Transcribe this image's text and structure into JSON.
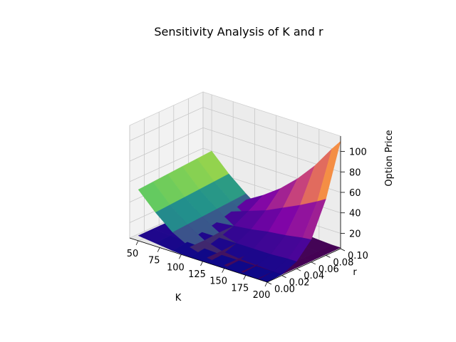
{
  "chart_data": {
    "type": "surface3d",
    "title": "Sensitivity Analysis of K and r",
    "xlabel": "K",
    "ylabel": "r",
    "zlabel": "Option Price",
    "xlim": [
      40,
      200
    ],
    "ylim": [
      0.0,
      0.1
    ],
    "zlim": [
      5,
      115
    ],
    "x_ticks": [
      50,
      75,
      100,
      125,
      150,
      175,
      200
    ],
    "x_tick_labels": [
      "50",
      "75",
      "100",
      "125",
      "150",
      "175",
      "200"
    ],
    "y_ticks": [
      0.0,
      0.02,
      0.04,
      0.06,
      0.08,
      0.1
    ],
    "y_tick_labels": [
      "0.00",
      "0.02",
      "0.04",
      "0.06",
      "0.08",
      "0.10"
    ],
    "z_ticks": [
      20,
      40,
      60,
      80,
      100
    ],
    "z_tick_labels": [
      "20",
      "40",
      "60",
      "80",
      "100"
    ],
    "grid": true,
    "series": [
      {
        "colormap": "viridis",
        "K": [
          50,
          70,
          90,
          110,
          130,
          150,
          170,
          190,
          200
        ],
        "r": [
          0.0,
          0.02,
          0.04,
          0.06,
          0.08,
          0.1
        ],
        "values": [
          [
            55,
            56,
            57,
            58,
            59,
            60
          ],
          [
            38,
            39,
            40,
            41,
            42,
            43
          ],
          [
            24,
            25,
            26,
            27,
            28,
            29
          ],
          [
            15,
            15,
            16,
            16,
            17,
            17
          ],
          [
            10,
            10,
            11,
            11,
            11,
            12
          ],
          [
            8,
            8,
            8,
            8,
            9,
            9
          ],
          [
            7,
            7,
            7,
            7,
            7,
            7
          ],
          [
            6,
            6,
            6,
            6,
            6,
            6
          ],
          [
            6,
            6,
            6,
            6,
            6,
            6
          ]
        ]
      },
      {
        "colormap": "plasma",
        "K": [
          50,
          70,
          90,
          110,
          130,
          150,
          170,
          190,
          200
        ],
        "r": [
          0.0,
          0.02,
          0.04,
          0.06,
          0.08,
          0.1
        ],
        "values": [
          [
            10,
            10,
            10,
            10,
            10,
            10
          ],
          [
            8,
            9,
            10,
            11,
            12,
            13
          ],
          [
            6,
            8,
            11,
            14,
            18,
            23
          ],
          [
            5,
            7,
            11,
            16,
            24,
            33
          ],
          [
            5,
            6,
            11,
            18,
            30,
            45
          ],
          [
            5,
            6,
            11,
            21,
            38,
            60
          ],
          [
            5,
            6,
            11,
            23,
            46,
            78
          ],
          [
            5,
            6,
            12,
            26,
            55,
            100
          ],
          [
            5,
            6,
            12,
            27,
            60,
            110
          ]
        ]
      }
    ]
  }
}
